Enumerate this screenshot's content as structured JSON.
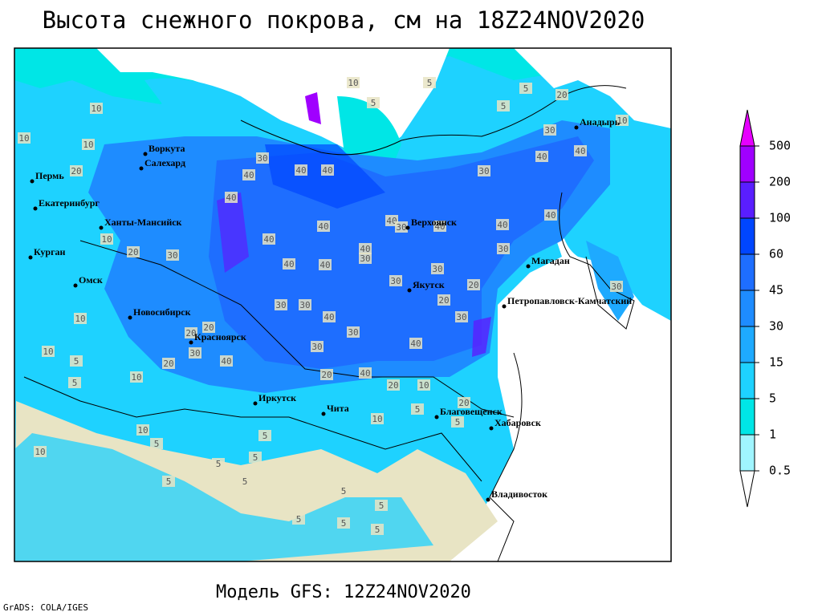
{
  "title": "Высота снежного покрова, см на 18Z24NOV2020",
  "footer": "Модель GFS: 12Z24NOV2020",
  "credit": "GrADS: COLA/IGES",
  "cities": [
    "Воркута",
    "Салехард",
    "Пермь",
    "Екатеринбург",
    "Ханты-Мансийск",
    "Курган",
    "Омск",
    "Новосибирск",
    "Красноярск",
    "Иркутск",
    "Чита",
    "Верхоянск",
    "Якутск",
    "Магадан",
    "Анадырь",
    "Петропавловск-Камчатский",
    "Благовещенск",
    "Хабаровск",
    "Владивосток"
  ],
  "contour_labels": [
    10,
    5,
    5,
    5,
    10,
    10,
    10,
    20,
    30,
    40,
    40,
    30,
    20,
    40,
    30,
    40,
    40,
    40,
    40,
    30,
    40,
    40,
    40,
    10,
    20,
    30,
    40,
    40,
    40,
    30,
    40,
    30,
    30,
    40,
    30,
    20,
    20,
    30,
    10,
    40,
    30,
    30,
    20,
    20,
    30,
    40,
    30,
    30,
    10,
    5,
    20,
    10,
    20,
    40,
    20,
    10,
    5,
    10,
    5,
    5,
    20,
    5,
    5,
    5,
    5,
    5,
    5,
    5,
    5,
    5,
    5,
    5,
    10,
    5,
    10,
    30,
    10,
    40
  ],
  "legend": {
    "levels": [
      0.5,
      1,
      5,
      15,
      30,
      45,
      60,
      100,
      200,
      500
    ],
    "colors": [
      "#ffffff",
      "#a0f5ff",
      "#00e6e6",
      "#1ed2ff",
      "#1eaaff",
      "#1e8cff",
      "#1e6eff",
      "#0046ff",
      "#5a1eff",
      "#a000ff",
      "#e600ff"
    ]
  }
}
